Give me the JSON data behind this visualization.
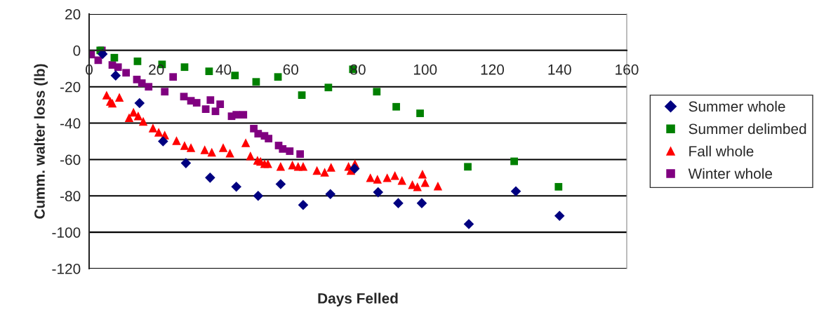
{
  "chart_data": {
    "type": "scatter",
    "xlabel": "Days Felled",
    "ylabel": "Cumm. walter loss (lb)",
    "xlim": [
      0,
      160
    ],
    "xticks": [
      0,
      20,
      40,
      60,
      80,
      100,
      120,
      140,
      160
    ],
    "ylim": [
      -120,
      20
    ],
    "yticks": [
      -120,
      -100,
      -80,
      -60,
      -40,
      -20,
      0,
      20
    ],
    "grid": "y",
    "legend": "right",
    "series": [
      {
        "name": "Summer whole",
        "color": "#000080",
        "marker": "diamond",
        "x": [
          4,
          7.9,
          15,
          22,
          28.8,
          36,
          43.8,
          50.3,
          57,
          63.7,
          71.8,
          79,
          86,
          92,
          99,
          113,
          127,
          140
        ],
        "values": [
          -2,
          -13.8,
          -29,
          -50,
          -62,
          -70,
          -75,
          -80,
          -73.5,
          -85,
          -79,
          -65,
          -78,
          -84,
          -84,
          -95.5,
          -77.5,
          -91
        ]
      },
      {
        "name": "Summer delimbed",
        "color": "#008000",
        "marker": "square",
        "x": [
          3.3,
          7.5,
          14.4,
          21.7,
          28.4,
          35.7,
          43.4,
          49.7,
          56.2,
          63.3,
          71.2,
          78.5,
          85.6,
          91.4,
          98.5,
          112.7,
          126.5,
          139.7
        ],
        "values": [
          0,
          -4,
          -6,
          -7.7,
          -9.2,
          -11.5,
          -13.8,
          -17.3,
          -14.6,
          -24.6,
          -20.4,
          -10.4,
          -22.7,
          -31,
          -34.6,
          -64,
          -61,
          -75
        ]
      },
      {
        "name": "Fall whole",
        "color": "#ff0000",
        "marker": "triangle",
        "x": [
          5.2,
          6.3,
          6.9,
          9,
          11.9,
          13.2,
          14.6,
          16.1,
          19,
          20.7,
          22.5,
          26,
          28.4,
          30.3,
          34.4,
          36.5,
          39.9,
          41.9,
          46.6,
          48,
          50.1,
          51,
          52.2,
          53.2,
          57,
          60.5,
          62.2,
          63.7,
          67.8,
          70.1,
          72,
          77.2,
          77.9,
          79.1,
          83.7,
          85.8,
          88.7,
          91,
          93.1,
          96.2,
          97.7,
          99.2,
          100,
          103.8
        ],
        "values": [
          -24.6,
          -28,
          -29,
          -25.8,
          -37,
          -34,
          -36,
          -39,
          -42.7,
          -45,
          -46.5,
          -49.6,
          -52.3,
          -53.5,
          -54.6,
          -56,
          -53.5,
          -56.5,
          -50.8,
          -58,
          -60.4,
          -61,
          -62.3,
          -62.3,
          -63.8,
          -63,
          -63.8,
          -63.8,
          -66,
          -67,
          -64.3,
          -63.8,
          -66,
          -62.3,
          -70,
          -70.8,
          -70,
          -68.8,
          -71.5,
          -73.8,
          -75,
          -68,
          -72.7,
          -74.6
        ]
      },
      {
        "name": "Winter whole",
        "color": "#800080",
        "marker": "square",
        "x": [
          0.6,
          2.7,
          3.8,
          6.9,
          8.6,
          11,
          14.2,
          15.7,
          17.7,
          22.5,
          25,
          28.2,
          30.3,
          32,
          34.7,
          36.1,
          37.6,
          39,
          42.4,
          43.8,
          45.9,
          49,
          50.3,
          52.2,
          53.4,
          56.4,
          57.6,
          59.7,
          62.8
        ],
        "values": [
          -2.3,
          -5.4,
          0,
          -8,
          -9.2,
          -12.3,
          -16,
          -18,
          -20,
          -22.7,
          -14.6,
          -25.4,
          -27.7,
          -28.8,
          -32.3,
          -27.3,
          -33.5,
          -29.6,
          -36.2,
          -35.4,
          -35.4,
          -43,
          -45.8,
          -47,
          -48.5,
          -52.3,
          -54.2,
          -55.4,
          -57
        ]
      }
    ]
  }
}
